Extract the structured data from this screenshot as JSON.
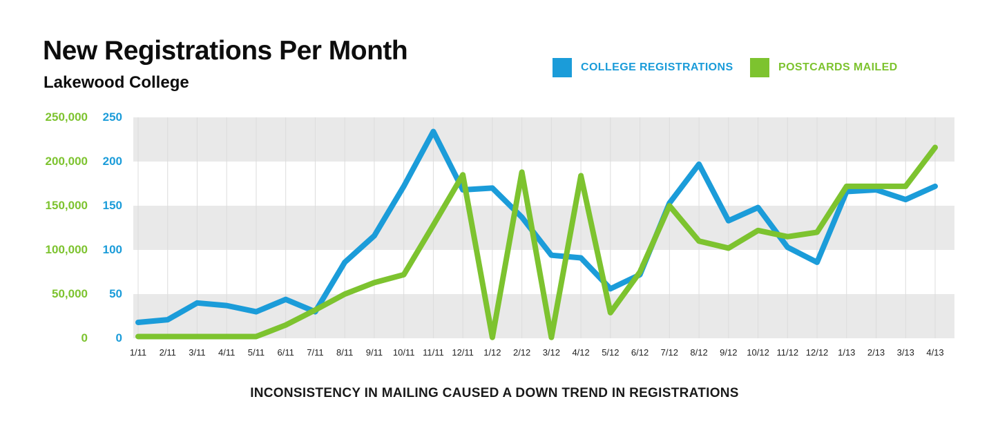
{
  "header": {
    "title": "New Registrations Per Month",
    "subtitle": "Lakewood College"
  },
  "legend": {
    "items": [
      {
        "label": "COLLEGE REGISTRATIONS",
        "color": "#1b9cd9"
      },
      {
        "label": "POSTCARDS MAILED",
        "color": "#7dc32f"
      }
    ]
  },
  "caption": "INCONSISTENCY IN MAILING CAUSED A DOWN TREND IN REGISTRATIONS",
  "colors": {
    "registrations_blue": "#1b9cd9",
    "postcards_green": "#7dc32f",
    "band_gray": "#e9e9e9",
    "gridline_gray": "#dcdcdc"
  },
  "chart_data": {
    "type": "line",
    "title": "New Registrations Per Month",
    "subtitle": "Lakewood College",
    "x_labels": [
      "1/11",
      "2/11",
      "3/11",
      "4/11",
      "5/11",
      "6/11",
      "7/11",
      "8/11",
      "9/11",
      "10/11",
      "11/11",
      "12/11",
      "1/12",
      "2/12",
      "3/12",
      "4/12",
      "5/12",
      "6/12",
      "7/12",
      "8/12",
      "9/12",
      "10/12",
      "11/12",
      "12/12",
      "1/13",
      "2/13",
      "3/13",
      "4/13"
    ],
    "left_axis": {
      "label_for": "Postcards Mailed",
      "color": "#7dc32f",
      "min": 0,
      "max": 250000,
      "ticks": [
        "250,000",
        "200,000",
        "150,000",
        "100,000",
        "50,000",
        "0"
      ]
    },
    "right_axis": {
      "label_for": "College Registrations",
      "color": "#1b9cd9",
      "min": 0,
      "max": 250,
      "ticks": [
        "250",
        "200",
        "150",
        "100",
        "50",
        "0"
      ]
    },
    "series": [
      {
        "name": "College Registrations",
        "axis": "right",
        "color": "#1b9cd9",
        "values": [
          18,
          21,
          40,
          37,
          30,
          44,
          30,
          86,
          116,
          172,
          234,
          168,
          170,
          137,
          94,
          91,
          56,
          72,
          153,
          197,
          133,
          148,
          103,
          86,
          166,
          168,
          157,
          172
        ]
      },
      {
        "name": "Postcards Mailed",
        "axis": "left",
        "color": "#7dc32f",
        "values": [
          2000,
          2000,
          2000,
          2000,
          2000,
          15000,
          32000,
          50000,
          63000,
          72000,
          128000,
          185000,
          1000,
          188000,
          1000,
          184000,
          29000,
          75000,
          150000,
          110000,
          102000,
          122000,
          115000,
          120000,
          172000,
          172000,
          172000,
          216000
        ]
      }
    ],
    "grid": {
      "vertical_month_lines": true,
      "horizontal_bands_alternating_gray": true
    },
    "legend_position": "top-right"
  }
}
